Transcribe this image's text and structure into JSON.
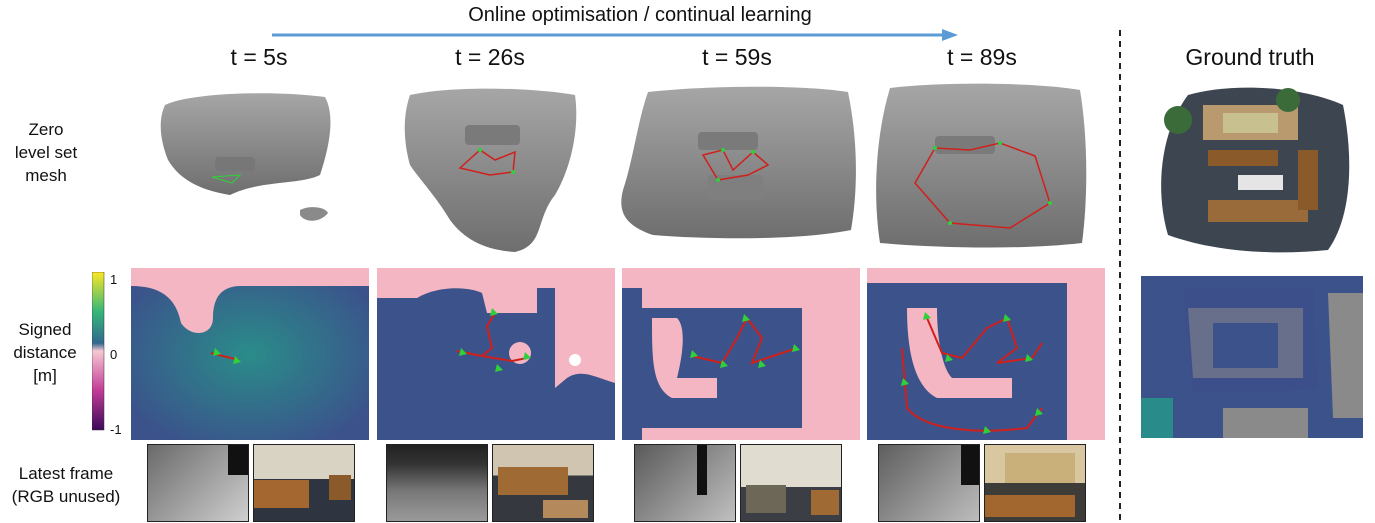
{
  "header": {
    "arrow_text": "Online optimisation / continual learning"
  },
  "time_labels": [
    "t = 5s",
    "t = 26s",
    "t = 59s",
    "t = 89s"
  ],
  "ground_truth_label": "Ground truth",
  "row_labels": {
    "mesh": [
      "Zero",
      "level set",
      "mesh"
    ],
    "sdf": [
      "Signed",
      "distance",
      "[m]"
    ],
    "frame": [
      "Latest frame",
      "(RGB unused)"
    ]
  },
  "colorbar": {
    "ticks": [
      "1",
      "0",
      "-1"
    ]
  },
  "colors": {
    "arrow": "#5b9bd5",
    "mesh_gray": "#8c8c8c",
    "sdf_positive": "#3b528b",
    "sdf_near_zero": "#f4b6c2",
    "trajectory": "#d0201c",
    "camera": "#2fd13a"
  }
}
